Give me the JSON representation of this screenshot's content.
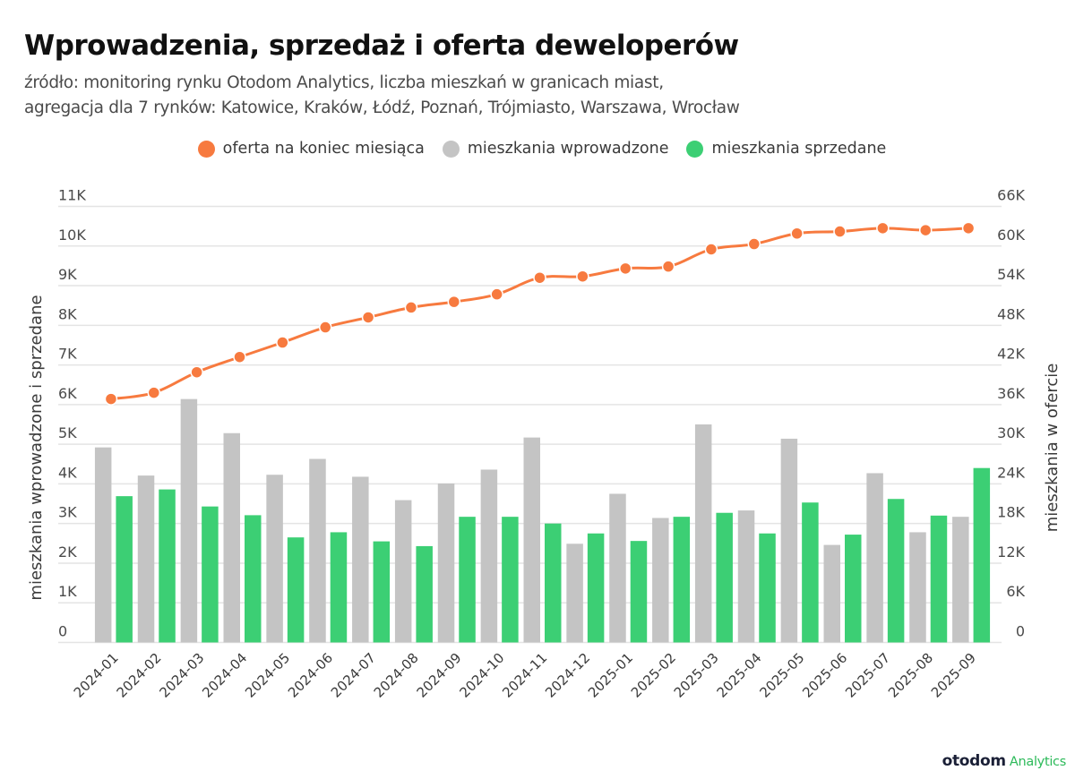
{
  "header": {
    "title": "Wprowadzenia, sprzedaż i oferta deweloperów",
    "subtitle_line1": "źródło: monitoring rynku Otodom Analytics, liczba mieszkań w granicach miast,",
    "subtitle_line2": "agregacja dla 7 rynków: Katowice, Kraków, Łódź, Poznań, Trójmiasto, Warszawa, Wrocław"
  },
  "legend": [
    {
      "label": "oferta na koniec miesiąca",
      "color": "#f77a3f"
    },
    {
      "label": "mieszkania wprowadzone",
      "color": "#c4c4c4"
    },
    {
      "label": "mieszkania sprzedane",
      "color": "#3ccf74"
    }
  ],
  "logo": {
    "main": "otodom",
    "sub": "Analytics"
  },
  "chart_data": {
    "type": "bar",
    "title": "Wprowadzenia, sprzedaż i oferta deweloperów",
    "categories": [
      "2024-01",
      "2024-02",
      "2024-03",
      "2024-04",
      "2024-05",
      "2024-06",
      "2024-07",
      "2024-08",
      "2024-09",
      "2024-10",
      "2024-11",
      "2024-12",
      "2025-01",
      "2025-02",
      "2025-03",
      "2025-04",
      "2025-05",
      "2025-06",
      "2025-07",
      "2025-08",
      "2025-09"
    ],
    "ylabel": "mieszkania wprowadzone i sprzedane",
    "ylabel_right": "mieszkania w ofercie",
    "ylim": [
      0,
      11000
    ],
    "ylim_right": [
      0,
      66000
    ],
    "yticks": [
      "0",
      "1K",
      "2K",
      "3K",
      "4K",
      "5K",
      "6K",
      "7K",
      "8K",
      "9K",
      "10K",
      "11K"
    ],
    "yticks_right": [
      "0",
      "6K",
      "12K",
      "18K",
      "24K",
      "30K",
      "36K",
      "42K",
      "48K",
      "54K",
      "60K",
      "66K"
    ],
    "grid": true,
    "legend_position": "top-center",
    "series": [
      {
        "name": "oferta na koniec miesiąca",
        "type": "line",
        "axis": "right",
        "color": "#f77a3f",
        "values": [
          36850,
          37800,
          40900,
          43200,
          45400,
          47700,
          49200,
          50700,
          51550,
          52700,
          55200,
          55400,
          56600,
          56900,
          59500,
          60300,
          61900,
          62200,
          62700,
          62400,
          62700
        ]
      },
      {
        "name": "mieszkania wprowadzone",
        "type": "bar",
        "axis": "left",
        "color": "#c4c4c4",
        "values": [
          4920,
          4210,
          6140,
          5280,
          4230,
          4630,
          4180,
          3590,
          4010,
          4360,
          5170,
          2490,
          3750,
          3140,
          5500,
          3330,
          5140,
          2460,
          4270,
          2780,
          3170
        ]
      },
      {
        "name": "mieszkania sprzedane",
        "type": "bar",
        "axis": "left",
        "color": "#3ccf74",
        "values": [
          3690,
          3860,
          3430,
          3210,
          2650,
          2780,
          2550,
          2430,
          3170,
          3170,
          3000,
          2750,
          2560,
          3170,
          3270,
          2750,
          3530,
          2720,
          3620,
          3200,
          4400
        ]
      }
    ]
  }
}
